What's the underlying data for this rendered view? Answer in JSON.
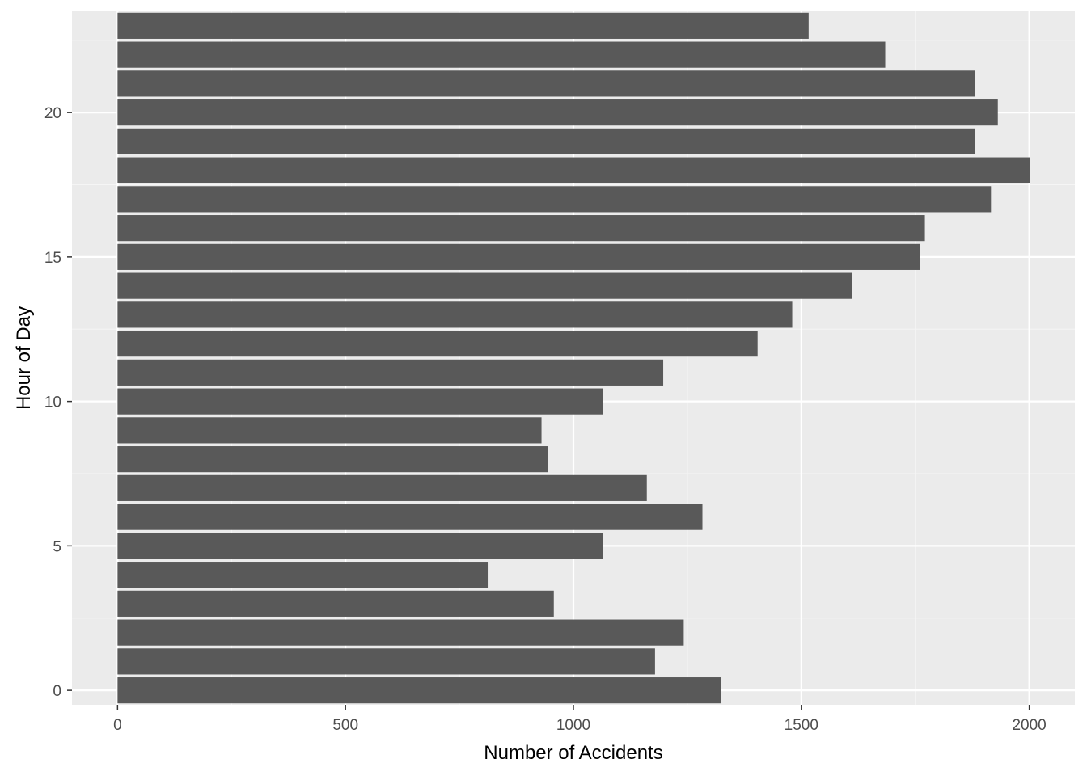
{
  "chart_data": {
    "type": "bar",
    "orientation": "horizontal",
    "title": "",
    "xlabel": "Number of Accidents",
    "ylabel": "Hour of Day",
    "categories": [
      0,
      1,
      2,
      3,
      4,
      5,
      6,
      7,
      8,
      9,
      10,
      11,
      12,
      13,
      14,
      15,
      16,
      17,
      18,
      19,
      20,
      21,
      22,
      23
    ],
    "values": [
      1323,
      1179,
      1242,
      957,
      812,
      1064,
      1283,
      1161,
      945,
      930,
      1064,
      1197,
      1404,
      1480,
      1612,
      1760,
      1771,
      1916,
      2002,
      1881,
      1931,
      1881,
      1684,
      1516
    ],
    "xlim": [
      -100,
      2100
    ],
    "ylim": [
      -0.5,
      23.5
    ],
    "x_ticks": [
      0,
      500,
      1000,
      1500,
      2000
    ],
    "x_tick_labels": [
      "0",
      "500",
      "1000",
      "1500",
      "2000"
    ],
    "y_ticks": [
      0,
      5,
      10,
      15,
      20
    ],
    "y_tick_labels": [
      "0",
      "5",
      "10",
      "15",
      "20"
    ],
    "grid": true,
    "colors": {
      "bar": "#595959",
      "panel_background": "#EBEBEB",
      "grid_major": "#FFFFFF",
      "grid_minor": "#F5F5F5",
      "tick_label": "#4D4D4D",
      "axis_title": "#000000"
    }
  }
}
